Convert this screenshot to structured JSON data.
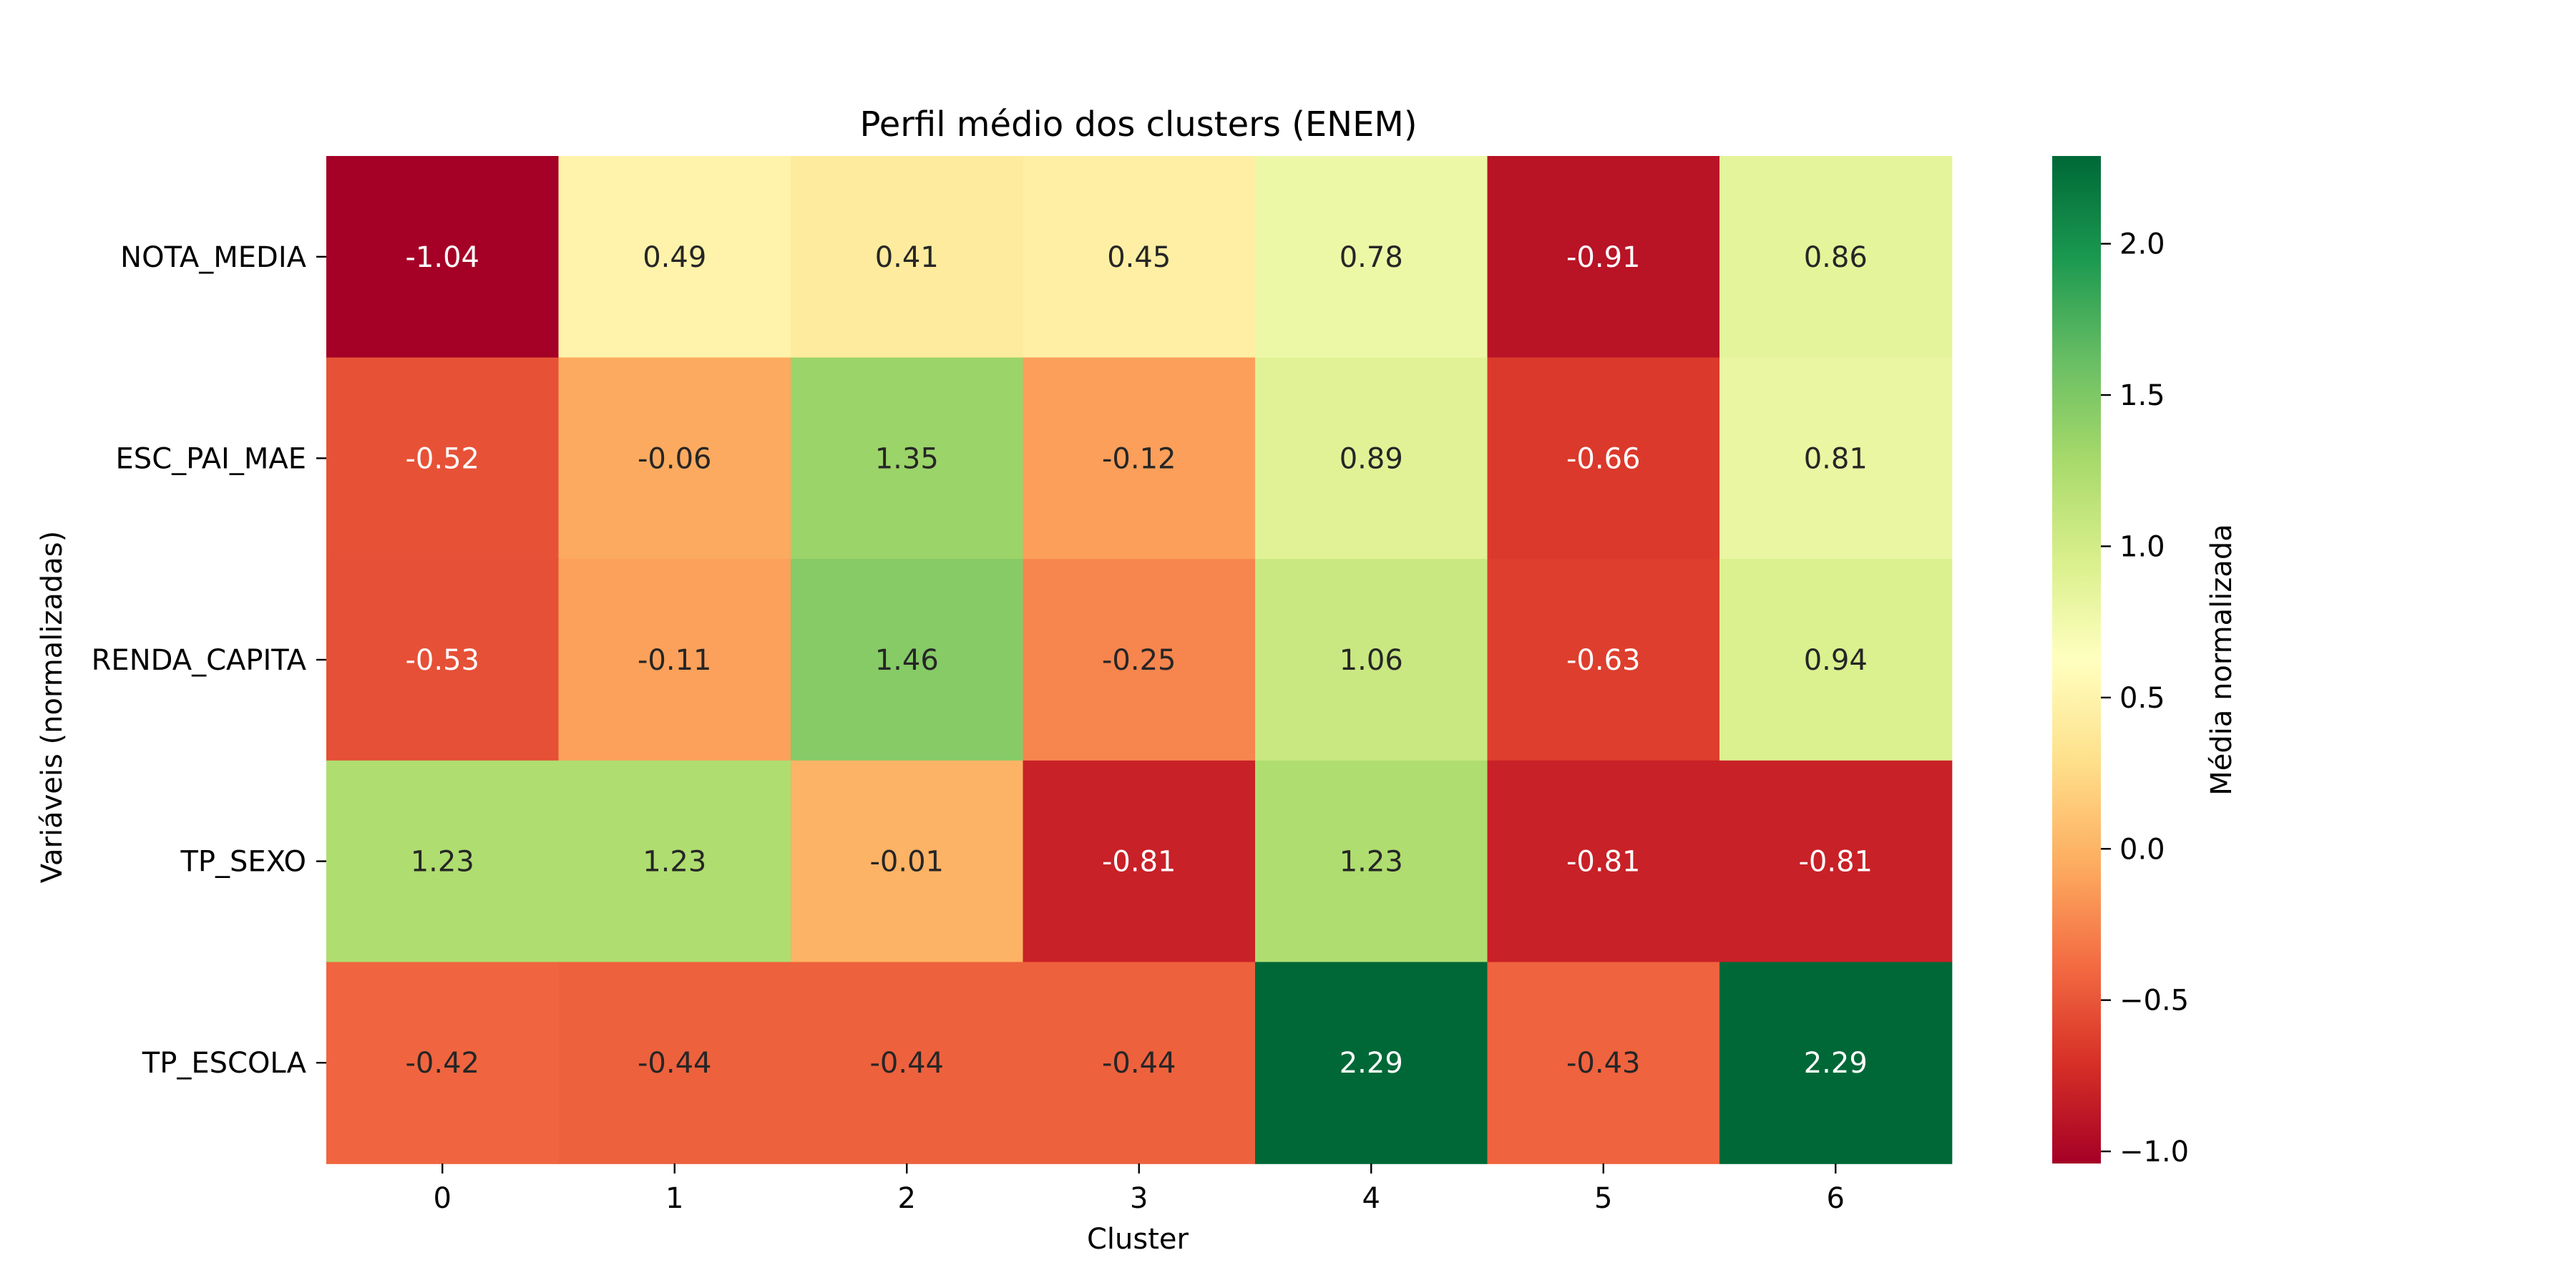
{
  "chart_data": {
    "type": "heatmap",
    "title": "Perfil médio dos clusters (ENEM)",
    "xlabel": "Cluster",
    "ylabel": "Variáveis (normalizadas)",
    "x_categories": [
      "0",
      "1",
      "2",
      "3",
      "4",
      "5",
      "6"
    ],
    "y_categories": [
      "NOTA_MEDIA",
      "ESC_PAI_MAE",
      "RENDA_CAPITA",
      "TP_SEXO",
      "TP_ESCOLA"
    ],
    "values": [
      [
        -1.04,
        0.49,
        0.41,
        0.45,
        0.78,
        -0.91,
        0.86
      ],
      [
        -0.52,
        -0.06,
        1.35,
        -0.12,
        0.89,
        -0.66,
        0.81
      ],
      [
        -0.53,
        -0.11,
        1.46,
        -0.25,
        1.06,
        -0.63,
        0.94
      ],
      [
        1.23,
        1.23,
        -0.01,
        -0.81,
        1.23,
        -0.81,
        -0.81
      ],
      [
        -0.42,
        -0.44,
        -0.44,
        -0.44,
        2.29,
        -0.43,
        2.29
      ]
    ],
    "colorbar": {
      "label": "Média normalizada",
      "colormap": "RdYlGn",
      "range": [
        -1.04,
        2.29
      ],
      "ticks": [
        -1.0,
        -0.5,
        0.0,
        0.5,
        1.0,
        1.5,
        2.0
      ],
      "tick_labels": [
        "−1.0",
        "−0.5",
        "0.0",
        "0.5",
        "1.0",
        "1.5",
        "2.0"
      ]
    },
    "grid": false
  }
}
